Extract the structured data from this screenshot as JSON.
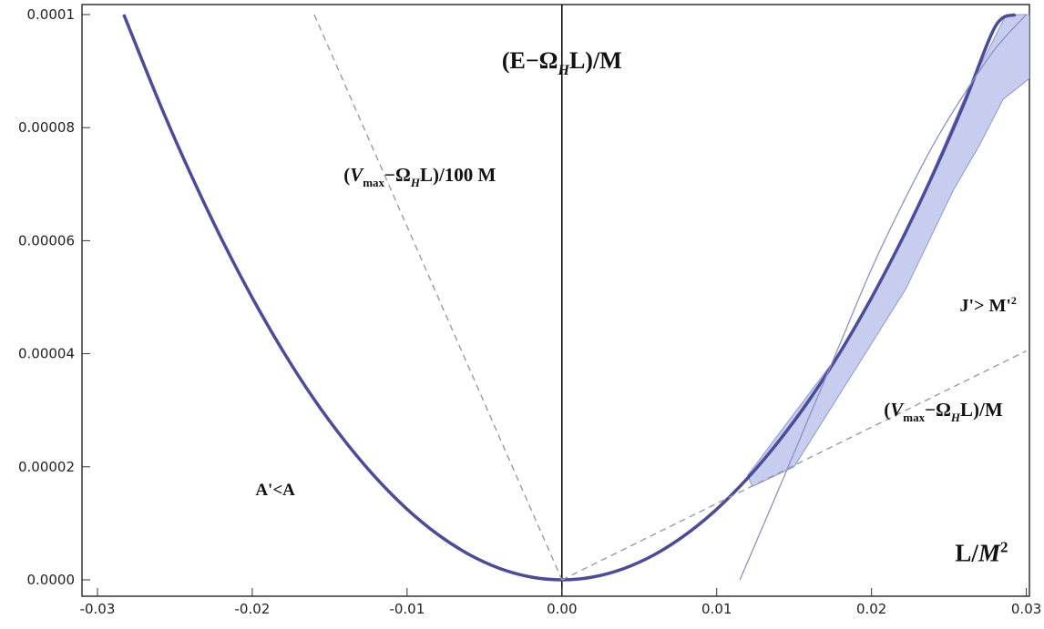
{
  "chart_data": {
    "type": "line",
    "xlim": [
      -0.031,
      0.0302
    ],
    "ylim": [
      0,
      0.0001
    ],
    "x_ticks": [
      {
        "value": -0.03,
        "label": "-0.03"
      },
      {
        "value": -0.02,
        "label": "-0.02"
      },
      {
        "value": -0.01,
        "label": "-0.01"
      },
      {
        "value": 0.0,
        "label": "0.00"
      },
      {
        "value": 0.01,
        "label": "0.01"
      },
      {
        "value": 0.02,
        "label": "0.02"
      },
      {
        "value": 0.03,
        "label": "0.03"
      }
    ],
    "y_ticks": [
      {
        "value": 0.0,
        "label": "0.0000"
      },
      {
        "value": 2e-05,
        "label": "0.00002"
      },
      {
        "value": 4e-05,
        "label": "0.00004"
      },
      {
        "value": 6e-05,
        "label": "0.00006"
      },
      {
        "value": 8e-05,
        "label": "0.00008"
      },
      {
        "value": 0.0001,
        "label": "0.0001"
      }
    ],
    "grid": false,
    "colors": {
      "main_curve": "#4b4b9c",
      "shaded_region": "#c6cdef",
      "shaded_edge": "#8f98cf",
      "dashed_lines": "#9a9aa8",
      "thin_line": "#8c90c4",
      "axis": "#000000"
    },
    "series": [
      {
        "label_parts": [
          "(E−Ω",
          "H",
          "L)/M"
        ],
        "style": "solid-thick",
        "x": [
          -0.0283,
          -0.026,
          -0.024,
          -0.022,
          -0.02,
          -0.018,
          -0.016,
          -0.014,
          -0.012,
          -0.01,
          -0.008,
          -0.006,
          -0.004,
          -0.002,
          0.0,
          0.002,
          0.004,
          0.006,
          0.008,
          0.01,
          0.012,
          0.014,
          0.016,
          0.018,
          0.02,
          0.022,
          0.024,
          0.026,
          0.028,
          0.0293
        ],
        "y": [
          0.0001,
          8.44e-05,
          7.19e-05,
          6.04e-05,
          4.99e-05,
          4.04e-05,
          3.19e-05,
          2.45e-05,
          1.8e-05,
          1.25e-05,
          8e-06,
          4.5e-06,
          2e-06,
          5e-07,
          0.0,
          5e-07,
          2e-06,
          4.5e-06,
          8e-06,
          1.25e-05,
          1.8e-05,
          2.45e-05,
          3.19e-05,
          4.04e-05,
          4.99e-05,
          6.04e-05,
          7.19e-05,
          8.44e-05,
          9.79e-05,
          0.0001
        ]
      },
      {
        "label_parts": [
          "(",
          "V",
          "max",
          "−Ω",
          "H",
          "L)/100 M"
        ],
        "style": "dashed",
        "x": [
          -0.016,
          0.0
        ],
        "y": [
          0.0001,
          0.0
        ]
      },
      {
        "label_parts": [
          "(",
          "V",
          "max",
          "−Ω",
          "H",
          "L)/M"
        ],
        "style": "dashed",
        "x": [
          0.0,
          0.03
        ],
        "y": [
          0.0,
          4.05e-05
        ]
      },
      {
        "style": "solid-thin",
        "x": [
          0.0115,
          0.014,
          0.016,
          0.018,
          0.02,
          0.022,
          0.024,
          0.026,
          0.028,
          0.03
        ],
        "y": [
          0.0,
          1.6e-05,
          2.9e-05,
          4.2e-05,
          5.5e-05,
          6.65e-05,
          7.7e-05,
          8.6e-05,
          9.4e-05,
          0.0001
        ]
      }
    ],
    "shaded_region": {
      "x": [
        0.012,
        0.0184,
        0.0203,
        0.0222,
        0.0262,
        0.0287,
        0.0302,
        0.0302,
        0.0285,
        0.027,
        0.0253,
        0.0222,
        0.015,
        0.0123
      ],
      "y": [
        1.85e-05,
        4.18e-05,
        5.15e-05,
        6.1e-05,
        8.65e-05,
        0.0001,
        0.0001,
        8.87e-05,
        8.5e-05,
        7.7e-05,
        6.9e-05,
        5.14e-05,
        2e-05,
        1.65e-05
      ]
    },
    "annotations": [
      {
        "parts": [
          "(E−Ω",
          "H",
          "L)/M"
        ],
        "x": 0.0,
        "y": 9.05e-05
      },
      {
        "parts": [
          "(",
          "V",
          "max",
          "−Ω",
          "H",
          "L)/100 M"
        ],
        "x": -0.0141,
        "y": 7.05e-05
      },
      {
        "parts": [
          "(",
          "V",
          "max",
          "−Ω",
          "H",
          "L)/M"
        ],
        "x": 0.0208,
        "y": 2.9e-05
      },
      {
        "parts": [
          "J'> M'",
          "2"
        ],
        "x": 0.0257,
        "y": 4.75e-05
      },
      {
        "parts": [
          "A'<A"
        ],
        "x": -0.0198,
        "y": 1.5e-05
      },
      {
        "parts": [
          "L/",
          "M",
          "2"
        ],
        "x": 0.0254,
        "y": 3.3e-06
      }
    ]
  }
}
